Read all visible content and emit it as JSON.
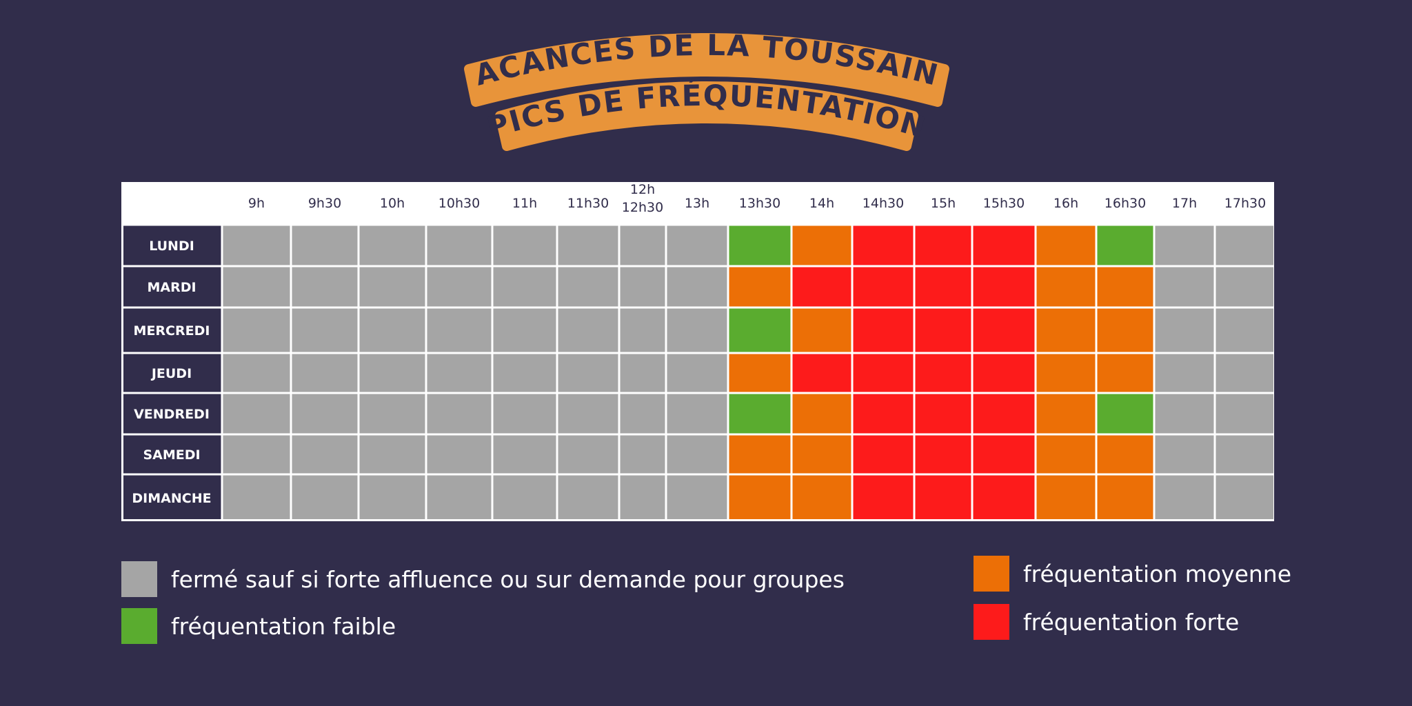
{
  "title": {
    "line1": "VACANCES DE LA TOUSSAINT",
    "line2": "PICS DE FRÉQUENTATION"
  },
  "colors": {
    "background": "#312d4b",
    "banner": "#e8943a",
    "banner_text": "#312d4b",
    "header_bg": "#ffffff",
    "day_cell": "#312d4b",
    "grid_lines": "#ffffff",
    "level_closed": "#a5a5a5",
    "level_faible": "#5aac2f",
    "level_moyenne": "#ec6f06",
    "level_forte": "#fd1b1b"
  },
  "chart_data": {
    "type": "heatmap",
    "title": "",
    "columns": [
      "9h",
      "9h30",
      "10h",
      "10h30",
      "11h",
      "11h30",
      "12h\n12h30",
      "13h",
      "13h30",
      "14h",
      "14h30",
      "15h",
      "15h30",
      "16h",
      "16h30",
      "17h",
      "17h30"
    ],
    "rows": [
      "LUNDI",
      "MARDI",
      "MERCREDI",
      "JEUDI",
      "VENDREDI",
      "SAMEDI",
      "DIMANCHE"
    ],
    "level_scale": {
      "0": "fermé sauf si forte affluence ou sur demande pour groupes",
      "1": "fréquentation faible",
      "2": "fréquentation moyenne",
      "3": "fréquentation forte"
    },
    "values": [
      [
        0,
        0,
        0,
        0,
        0,
        0,
        0,
        0,
        1,
        2,
        3,
        3,
        3,
        2,
        1,
        0,
        0
      ],
      [
        0,
        0,
        0,
        0,
        0,
        0,
        0,
        0,
        2,
        3,
        3,
        3,
        3,
        2,
        2,
        0,
        0
      ],
      [
        0,
        0,
        0,
        0,
        0,
        0,
        0,
        0,
        1,
        2,
        3,
        3,
        3,
        2,
        2,
        0,
        0
      ],
      [
        0,
        0,
        0,
        0,
        0,
        0,
        0,
        0,
        2,
        3,
        3,
        3,
        3,
        2,
        2,
        0,
        0
      ],
      [
        0,
        0,
        0,
        0,
        0,
        0,
        0,
        0,
        1,
        2,
        3,
        3,
        3,
        2,
        1,
        0,
        0
      ],
      [
        0,
        0,
        0,
        0,
        0,
        0,
        0,
        0,
        2,
        2,
        3,
        3,
        3,
        2,
        2,
        0,
        0
      ],
      [
        0,
        0,
        0,
        0,
        0,
        0,
        0,
        0,
        2,
        2,
        3,
        3,
        3,
        2,
        2,
        0,
        0
      ]
    ]
  },
  "legend": [
    {
      "level": 0,
      "label": "fermé sauf si forte affluence ou sur demande pour groupes"
    },
    {
      "level": 1,
      "label": "fréquentation faible"
    },
    {
      "level": 2,
      "label": "fréquentation moyenne"
    },
    {
      "level": 3,
      "label": "fréquentation forte"
    }
  ]
}
